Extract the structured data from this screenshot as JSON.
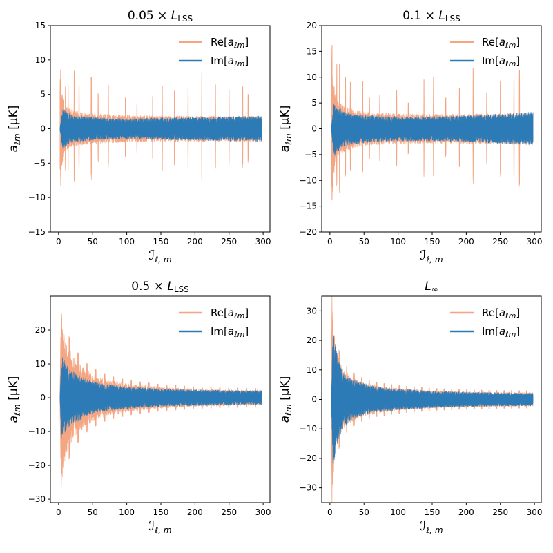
{
  "figure": {
    "xlabel_main": "ℐ",
    "xlabel_sub": "ℓ, m",
    "ylabel_main": "a",
    "ylabel_sub": "ℓm",
    "ylabel_unit": " [μK]",
    "colors": {
      "re": "#f4a582",
      "im": "#2c7bb6"
    }
  },
  "chart_data": [
    {
      "type": "area",
      "title_prefix": "0.05 × ",
      "title_main": "L",
      "title_sub": "LSS",
      "xlim": [
        -12,
        310
      ],
      "ylim": [
        -15,
        15
      ],
      "xticks": [
        "0",
        "50",
        "100",
        "150",
        "200",
        "250",
        "300"
      ],
      "xtick_values": [
        0,
        50,
        100,
        150,
        200,
        250,
        300
      ],
      "yticks": [
        "−15",
        "−10",
        "−5",
        "0",
        "5",
        "10",
        "15"
      ],
      "ytick_values": [
        -15,
        -10,
        -5,
        0,
        5,
        10,
        15
      ],
      "legend": {
        "re_label": "Re[",
        "im_label": "Im[",
        "inner": "a",
        "inner_sub": "ℓm",
        "close": "]",
        "location": "top-right"
      },
      "series": [
        {
          "name": "Re[aℓm]",
          "envelope_x": [
            2,
            4,
            8,
            14,
            25,
            40,
            60,
            100,
            150,
            200,
            250,
            298
          ],
          "envelope_amp": [
            8.6,
            6.0,
            3.8,
            3.0,
            2.6,
            2.3,
            2.2,
            2.0,
            1.9,
            1.9,
            1.9,
            1.9
          ],
          "spikes_x": [
            3,
            10,
            14,
            23,
            30,
            48,
            58,
            73,
            98,
            115,
            138,
            152,
            170,
            190,
            210,
            230,
            250,
            270,
            278
          ],
          "spikes_amp": [
            8.6,
            6.1,
            6.4,
            8.4,
            6.3,
            7.5,
            5.1,
            6.3,
            4.5,
            3.5,
            4.7,
            6.2,
            5.5,
            6.1,
            8.1,
            6.4,
            5.7,
            6.1,
            5.0
          ]
        },
        {
          "name": "Im[aℓm]",
          "envelope_x": [
            2,
            6,
            20,
            60,
            100,
            150,
            200,
            250,
            298
          ],
          "envelope_amp": [
            0.3,
            2.9,
            2.0,
            1.6,
            1.5,
            1.6,
            1.7,
            1.8,
            1.9
          ]
        }
      ]
    },
    {
      "type": "area",
      "title_prefix": "0.1 × ",
      "title_main": "L",
      "title_sub": "LSS",
      "xlim": [
        -12,
        310
      ],
      "ylim": [
        -20,
        20
      ],
      "xticks": [
        "0",
        "50",
        "100",
        "150",
        "200",
        "250",
        "300"
      ],
      "xtick_values": [
        0,
        50,
        100,
        150,
        200,
        250,
        300
      ],
      "yticks": [
        "−20",
        "−15",
        "−10",
        "−5",
        "0",
        "5",
        "10",
        "15",
        "20"
      ],
      "ytick_values": [
        -20,
        -15,
        -10,
        -5,
        0,
        5,
        10,
        15,
        20
      ],
      "legend": {
        "re_label": "Re[",
        "im_label": "Im[",
        "inner": "a",
        "inner_sub": "ℓm",
        "close": "]",
        "location": "top-right"
      },
      "series": [
        {
          "name": "Re[aℓm]",
          "envelope_x": [
            2,
            4,
            8,
            14,
            25,
            40,
            60,
            100,
            150,
            200,
            250,
            298
          ],
          "envelope_amp": [
            16.2,
            12.0,
            6.5,
            5.0,
            4.2,
            3.6,
            3.2,
            3.0,
            2.9,
            2.9,
            3.0,
            3.2
          ],
          "spikes_x": [
            3,
            10,
            14,
            23,
            30,
            48,
            58,
            73,
            98,
            115,
            138,
            152,
            170,
            190,
            210,
            230,
            250,
            270,
            278
          ],
          "spikes_amp": [
            16.2,
            12.5,
            12.5,
            10.0,
            9.0,
            9.2,
            6.0,
            6.5,
            7.5,
            5.0,
            9.5,
            10.0,
            6.0,
            7.8,
            11.8,
            7.0,
            9.3,
            9.5,
            11.4
          ]
        },
        {
          "name": "Im[aℓm]",
          "envelope_x": [
            2,
            6,
            20,
            60,
            100,
            150,
            200,
            250,
            298
          ],
          "envelope_amp": [
            0.5,
            5.3,
            3.4,
            2.6,
            2.4,
            2.4,
            2.6,
            2.9,
            3.3
          ]
        }
      ]
    },
    {
      "type": "area",
      "title_prefix": "0.5 × ",
      "title_main": "L",
      "title_sub": "LSS",
      "xlim": [
        -12,
        310
      ],
      "ylim": [
        -31,
        30
      ],
      "xticks": [
        "0",
        "50",
        "100",
        "150",
        "200",
        "250",
        "300"
      ],
      "xtick_values": [
        0,
        50,
        100,
        150,
        200,
        250,
        300
      ],
      "yticks": [
        "−30",
        "−20",
        "−10",
        "0",
        "10",
        "20"
      ],
      "ytick_values": [
        -30,
        -20,
        -10,
        0,
        10,
        20
      ],
      "legend": {
        "re_label": "Re[",
        "im_label": "Im[",
        "inner": "a",
        "inner_sub": "ℓm",
        "close": "]",
        "location": "top-right"
      },
      "series": [
        {
          "name": "Re[aℓm]",
          "envelope_x": [
            2,
            4,
            6,
            10,
            15,
            20,
            30,
            40,
            50,
            70,
            100,
            150,
            200,
            250,
            298
          ],
          "envelope_amp": [
            1,
            27,
            22,
            18,
            15,
            12.5,
            10.5,
            8.5,
            7.2,
            5.5,
            4.3,
            3.2,
            2.7,
            2.4,
            2.3
          ]
        },
        {
          "name": "Im[aℓm]",
          "envelope_x": [
            2,
            4,
            6,
            10,
            15,
            20,
            30,
            40,
            50,
            70,
            100,
            150,
            200,
            250,
            298
          ],
          "envelope_amp": [
            0.5,
            12.5,
            12.0,
            10.5,
            9.0,
            8.0,
            6.8,
            5.6,
            4.9,
            4.0,
            3.3,
            2.7,
            2.4,
            2.2,
            2.1
          ]
        }
      ]
    },
    {
      "type": "area",
      "title_prefix": "",
      "title_main": "L",
      "title_sub": "∞",
      "xlim": [
        -12,
        310
      ],
      "ylim": [
        -35,
        35
      ],
      "xticks": [
        "0",
        "50",
        "100",
        "150",
        "200",
        "250",
        "300"
      ],
      "xtick_values": [
        0,
        50,
        100,
        150,
        200,
        250,
        300
      ],
      "yticks": [
        "−30",
        "−20",
        "−10",
        "0",
        "10",
        "20",
        "30"
      ],
      "ytick_values": [
        -30,
        -20,
        -10,
        0,
        10,
        20,
        30
      ],
      "legend": {
        "re_label": "Re[",
        "im_label": "Im[",
        "inner": "a",
        "inner_sub": "ℓm",
        "close": "]",
        "location": "top-right"
      },
      "series": [
        {
          "name": "Re[aℓm]",
          "envelope_x": [
            2,
            3,
            4,
            6,
            10,
            15,
            20,
            30,
            40,
            50,
            70,
            100,
            150,
            200,
            250,
            298
          ],
          "envelope_amp": [
            1,
            32,
            30,
            23,
            16,
            12.5,
            10,
            8,
            6.7,
            5.8,
            4.7,
            3.9,
            3.1,
            2.7,
            2.5,
            2.4
          ]
        },
        {
          "name": "Im[aℓm]",
          "envelope_x": [
            2,
            3,
            4,
            6,
            10,
            15,
            20,
            30,
            40,
            50,
            70,
            100,
            150,
            200,
            250,
            298
          ],
          "envelope_amp": [
            0.5,
            10,
            22.5,
            22,
            16,
            12,
            9.5,
            7.5,
            6.3,
            5.4,
            4.4,
            3.7,
            2.9,
            2.5,
            2.3,
            2.2
          ]
        }
      ]
    }
  ]
}
